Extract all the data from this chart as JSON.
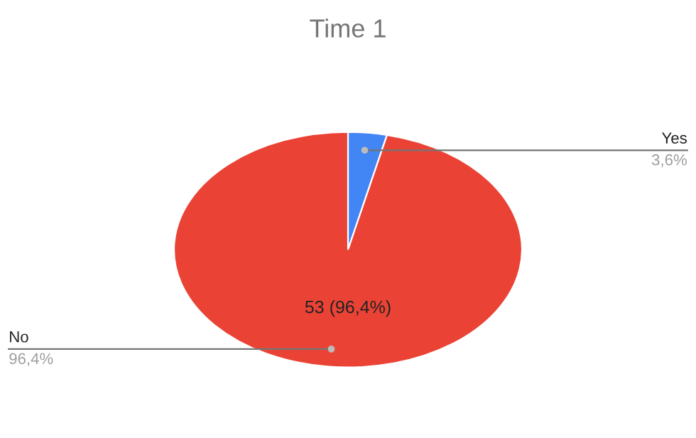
{
  "chart_data": {
    "type": "pie",
    "title": "Time 1",
    "categories": [
      "Yes",
      "No"
    ],
    "values": [
      3.6,
      96.4
    ],
    "colors": [
      "#4285f4",
      "#ea4335"
    ],
    "value_labels": [
      "3,6%",
      "96,4%"
    ],
    "annotations": [
      "53 (96,4%)"
    ],
    "legend": false
  }
}
